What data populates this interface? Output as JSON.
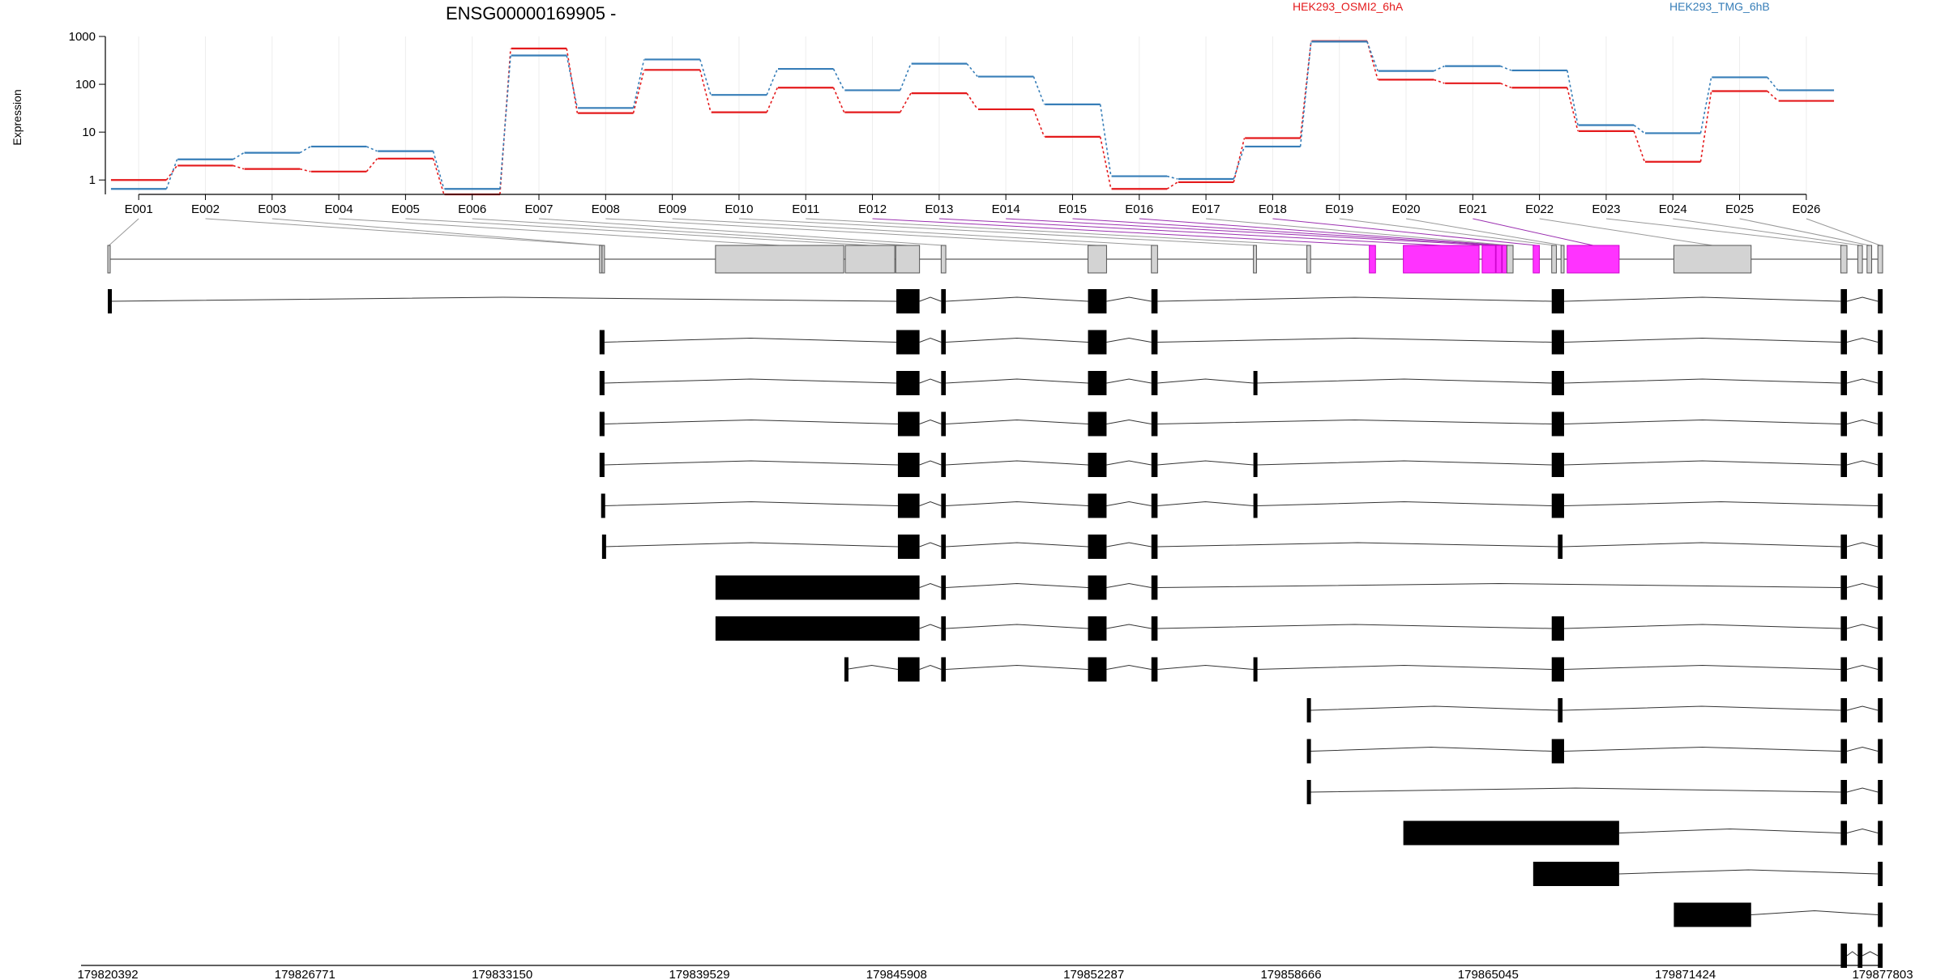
{
  "chart_data": {
    "type": "line",
    "title": "ENSG00000169905 -",
    "ylabel": "Expression",
    "y_scale": "log",
    "ylim": [
      0.5,
      1000
    ],
    "y_ticks": [
      "1",
      "10",
      "100",
      "1000"
    ],
    "y_tick_values": [
      1,
      10,
      100,
      1000
    ],
    "grid": true,
    "legend_position": "top-right",
    "genomic_range": [
      179820392,
      179877803
    ],
    "genomic_ticks": [
      "179820392",
      "179826771",
      "179833150",
      "179839529",
      "179845908",
      "179852287",
      "179858666",
      "179865045",
      "179871424",
      "179877803"
    ],
    "genomic_tick_values": [
      179820392,
      179826771,
      179833150,
      179839529,
      179845908,
      179852287,
      179858666,
      179865045,
      179871424,
      179877803
    ],
    "exons": [
      "E001",
      "E002",
      "E003",
      "E004",
      "E005",
      "E006",
      "E007",
      "E008",
      "E009",
      "E010",
      "E011",
      "E012",
      "E013",
      "E014",
      "E015",
      "E016",
      "E017",
      "E018",
      "E019",
      "E020",
      "E021",
      "E022",
      "E023",
      "E024",
      "E025",
      "E026"
    ],
    "exon_coords": [
      [
        179820392,
        179820440
      ],
      [
        179836300,
        179836350
      ],
      [
        179836380,
        179836460
      ],
      [
        179840050,
        179844200
      ],
      [
        179844250,
        179845850
      ],
      [
        179845880,
        179846650
      ],
      [
        179847350,
        179847500
      ],
      [
        179852100,
        179852700
      ],
      [
        179854150,
        179854350
      ],
      [
        179857450,
        179857550
      ],
      [
        179859180,
        179859300
      ],
      [
        179861200,
        179861400
      ],
      [
        179862300,
        179864750
      ],
      [
        179864850,
        179865280
      ],
      [
        179865300,
        179865480
      ],
      [
        179865500,
        179865650
      ],
      [
        179865650,
        179865850
      ],
      [
        179866500,
        179866700
      ],
      [
        179867100,
        179867250
      ],
      [
        179867400,
        179867500
      ],
      [
        179867600,
        179869280
      ],
      [
        179871050,
        179873550
      ],
      [
        179876450,
        179876650
      ],
      [
        179877000,
        179877150
      ],
      [
        179877300,
        179877450
      ],
      [
        179877650,
        179877803
      ]
    ],
    "differential_exons": [
      "E012",
      "E013",
      "E014",
      "E015",
      "E016",
      "E018",
      "E021"
    ],
    "series": [
      {
        "name": "HEK293_OSMI2_6hA",
        "color": "#e41a1c",
        "values": [
          1.0,
          2.0,
          1.7,
          1.5,
          2.8,
          0.5,
          560,
          25,
          200,
          26,
          85,
          26,
          65,
          30,
          8,
          0.65,
          0.9,
          7.5,
          800,
          125,
          105,
          85,
          10.5,
          2.4,
          72,
          45
        ]
      },
      {
        "name": "HEK293_TMG_6hB",
        "color": "#377eb8",
        "values": [
          0.65,
          2.7,
          3.7,
          5.0,
          4.0,
          0.65,
          400,
          32,
          330,
          60,
          210,
          75,
          270,
          145,
          38,
          1.2,
          1.05,
          5.0,
          780,
          190,
          240,
          195,
          14,
          9.5,
          140,
          75
        ]
      }
    ],
    "transcripts": [
      [
        [
          179820392,
          179820440
        ],
        [
          179845900,
          179846650
        ],
        [
          179847350,
          179847500
        ],
        [
          179852100,
          179852700
        ],
        [
          179854150,
          179854350
        ],
        [
          179867100,
          179867500
        ],
        [
          179876450,
          179876650
        ],
        [
          179877650,
          179877803
        ]
      ],
      [
        [
          179836300,
          179836460
        ],
        [
          179845900,
          179846650
        ],
        [
          179847350,
          179847500
        ],
        [
          179852100,
          179852700
        ],
        [
          179854150,
          179854350
        ],
        [
          179867100,
          179867500
        ],
        [
          179876450,
          179876650
        ],
        [
          179877650,
          179877803
        ]
      ],
      [
        [
          179836300,
          179836460
        ],
        [
          179845900,
          179846650
        ],
        [
          179847350,
          179847500
        ],
        [
          179852100,
          179852700
        ],
        [
          179854150,
          179854350
        ],
        [
          179857450,
          179857550
        ],
        [
          179867100,
          179867500
        ],
        [
          179876450,
          179876650
        ],
        [
          179877650,
          179877803
        ]
      ],
      [
        [
          179836300,
          179836460
        ],
        [
          179845950,
          179846650
        ],
        [
          179847350,
          179847500
        ],
        [
          179852100,
          179852700
        ],
        [
          179854150,
          179854350
        ],
        [
          179867100,
          179867500
        ],
        [
          179876450,
          179876650
        ],
        [
          179877650,
          179877803
        ]
      ],
      [
        [
          179836300,
          179836460
        ],
        [
          179845950,
          179846650
        ],
        [
          179847350,
          179847500
        ],
        [
          179852100,
          179852700
        ],
        [
          179854150,
          179854350
        ],
        [
          179857450,
          179857550
        ],
        [
          179867100,
          179867500
        ],
        [
          179876450,
          179876650
        ],
        [
          179877650,
          179877803
        ]
      ],
      [
        [
          179836350,
          179836460
        ],
        [
          179845950,
          179846650
        ],
        [
          179847350,
          179847500
        ],
        [
          179852100,
          179852700
        ],
        [
          179854150,
          179854350
        ],
        [
          179857450,
          179857550
        ],
        [
          179867100,
          179867500
        ],
        [
          179877650,
          179877803
        ]
      ],
      [
        [
          179836380,
          179836460
        ],
        [
          179845950,
          179846650
        ],
        [
          179847350,
          179847500
        ],
        [
          179852100,
          179852700
        ],
        [
          179854150,
          179854350
        ],
        [
          179867300,
          179867450
        ],
        [
          179876450,
          179876650
        ],
        [
          179877650,
          179877803
        ]
      ],
      [
        [
          179840050,
          179846650
        ],
        [
          179847350,
          179847500
        ],
        [
          179852100,
          179852700
        ],
        [
          179854150,
          179854350
        ],
        [
          179876450,
          179876650
        ],
        [
          179877650,
          179877803
        ]
      ],
      [
        [
          179840050,
          179846650
        ],
        [
          179847350,
          179847500
        ],
        [
          179852100,
          179852700
        ],
        [
          179854150,
          179854350
        ],
        [
          179867100,
          179867500
        ],
        [
          179876450,
          179876650
        ],
        [
          179877650,
          179877803
        ]
      ],
      [
        [
          179844220,
          179844260
        ],
        [
          179845950,
          179846650
        ],
        [
          179847350,
          179847500
        ],
        [
          179852100,
          179852700
        ],
        [
          179854150,
          179854350
        ],
        [
          179857450,
          179857550
        ],
        [
          179867100,
          179867500
        ],
        [
          179876450,
          179876650
        ],
        [
          179877650,
          179877803
        ]
      ],
      [
        [
          179859180,
          179859300
        ],
        [
          179867300,
          179867450
        ],
        [
          179876450,
          179876650
        ],
        [
          179877650,
          179877803
        ]
      ],
      [
        [
          179859180,
          179859300
        ],
        [
          179867100,
          179867500
        ],
        [
          179876450,
          179876650
        ],
        [
          179877650,
          179877803
        ]
      ],
      [
        [
          179859180,
          179859300
        ],
        [
          179876450,
          179876650
        ],
        [
          179877650,
          179877803
        ]
      ],
      [
        [
          179862300,
          179869280
        ],
        [
          179876450,
          179876650
        ],
        [
          179877650,
          179877803
        ]
      ],
      [
        [
          179866500,
          179869280
        ],
        [
          179877650,
          179877803
        ]
      ],
      [
        [
          179871050,
          179873550
        ],
        [
          179877650,
          179877803
        ]
      ],
      [
        [
          179876450,
          179876650
        ],
        [
          179877000,
          179877150
        ],
        [
          179877650,
          179877803
        ]
      ]
    ]
  }
}
